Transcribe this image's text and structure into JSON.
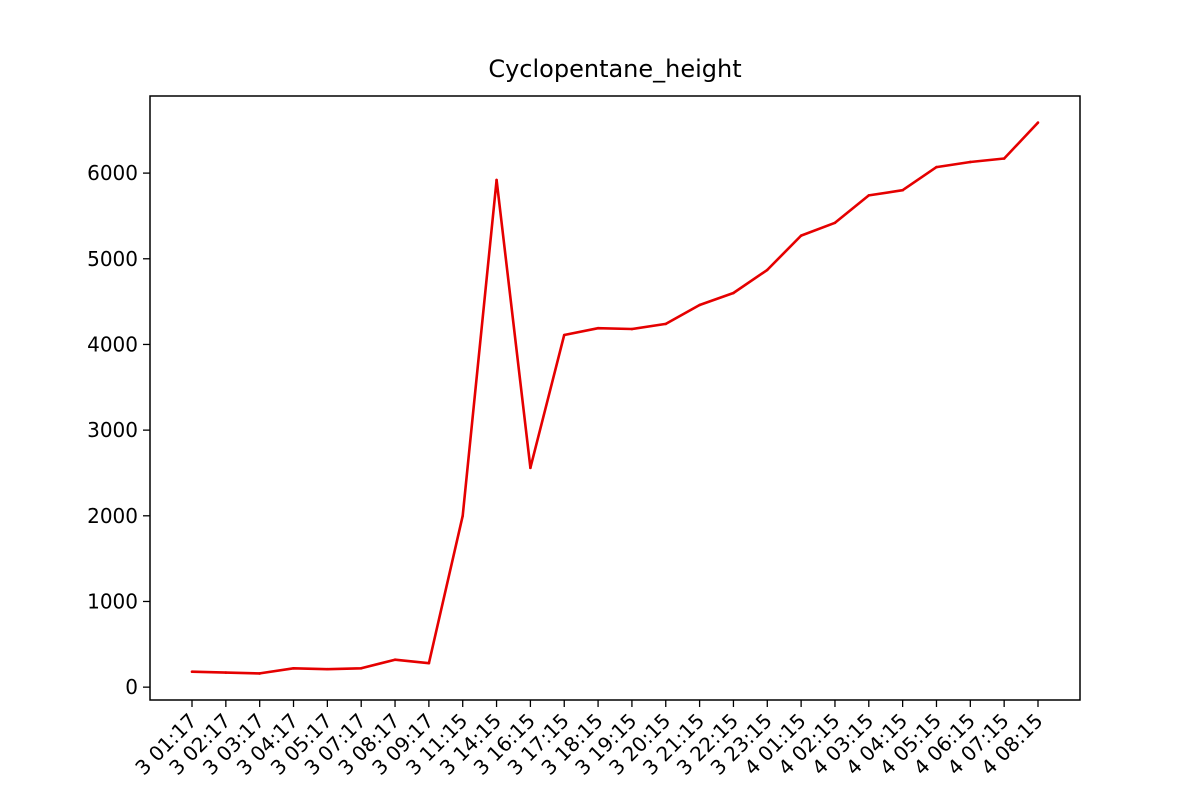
{
  "chart_data": {
    "type": "line",
    "title": "Cyclopentane_height",
    "xlabel": "",
    "ylabel": "",
    "ylim": [
      -150,
      6900
    ],
    "yticks": [
      0,
      1000,
      2000,
      3000,
      4000,
      5000,
      6000
    ],
    "grid": false,
    "line_color": "#e50000",
    "x": [
      "3 01:17",
      "3 02:17",
      "3 03:17",
      "3 04:17",
      "3 05:17",
      "3 07:17",
      "3 08:17",
      "3 09:17",
      "3 11:15",
      "3 14:15",
      "3 16:15",
      "3 17:15",
      "3 18:15",
      "3 19:15",
      "3 20:15",
      "3 21:15",
      "3 22:15",
      "3 23:15",
      "4 01:15",
      "4 02:15",
      "4 03:15",
      "4 04:15",
      "4 05:15",
      "4 06:15",
      "4 07:15",
      "4 08:15"
    ],
    "y": [
      180,
      170,
      160,
      220,
      210,
      220,
      320,
      280,
      2000,
      5920,
      2560,
      4110,
      4190,
      4180,
      4240,
      4460,
      4600,
      4870,
      5270,
      5420,
      5740,
      5800,
      6070,
      6130,
      6170,
      6590
    ]
  }
}
